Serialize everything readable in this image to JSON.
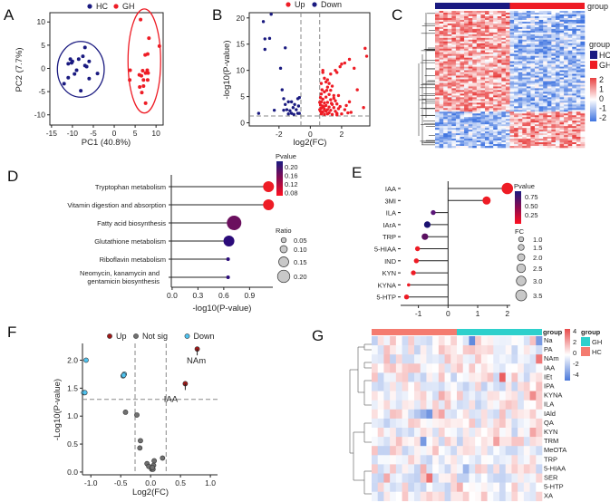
{
  "panels": {
    "A": "A",
    "B": "B",
    "C": "C",
    "D": "D",
    "E": "E",
    "F": "F",
    "G": "G"
  },
  "colors": {
    "HC": "#1a1a80",
    "GH": "#ee1c25",
    "up_F": "#a01818",
    "notsig_F": "#707070",
    "down_F": "#4fc3f0",
    "heat_low": "#3f74e0",
    "heat_high": "#e84040",
    "G_GH": "#2ed0cc",
    "G_HC": "#f47b6f"
  },
  "chart_data": [
    {
      "panel": "A",
      "type": "scatter",
      "xlabel": "PC1 (40.8%)",
      "ylabel": "PC2 (7.7%)",
      "xlim": [
        -15.4,
        11.7
      ],
      "ylim": [
        -12.2,
        12
      ],
      "xticks": [
        -15,
        -10,
        -5,
        0,
        5,
        10
      ],
      "yticks": [
        -10,
        -5,
        0,
        5,
        10
      ],
      "legend": "top",
      "series": [
        {
          "name": "HC",
          "color": "#1a1a80",
          "ellipse": {
            "cx": -8,
            "cy": -0.2,
            "rx": 5.6,
            "ry": 6.0
          },
          "points": [
            [
              -10.5,
              2
            ],
            [
              -10,
              1.5
            ],
            [
              -11,
              1
            ],
            [
              -10.2,
              1.2
            ],
            [
              -8.5,
              2
            ],
            [
              -7.5,
              2.6
            ],
            [
              -7,
              4.5
            ],
            [
              -6,
              1.5
            ],
            [
              -7,
              0.6
            ],
            [
              -6.6,
              0.4
            ],
            [
              -9,
              -0.4
            ],
            [
              -9.5,
              -1.2
            ],
            [
              -4,
              -1.1
            ],
            [
              -11,
              -2
            ],
            [
              -6,
              -2.2
            ],
            [
              -12,
              -3.3
            ],
            [
              -8,
              -4.8
            ]
          ]
        },
        {
          "name": "GH",
          "color": "#ee1c25",
          "ellipse": {
            "cx": 7.2,
            "cy": 1.6,
            "rx": 3.9,
            "ry": 11.2
          },
          "points": [
            [
              6.3,
              10.5
            ],
            [
              8.3,
              6.5
            ],
            [
              10.8,
              4.8
            ],
            [
              7.4,
              2.9
            ],
            [
              8,
              3.1
            ],
            [
              3.8,
              -0.4
            ],
            [
              3.7,
              -2.5
            ],
            [
              6,
              -1.4
            ],
            [
              6.5,
              -1.6
            ],
            [
              6.8,
              -0.5
            ],
            [
              7.5,
              -1
            ],
            [
              7.9,
              -0.4
            ],
            [
              8.1,
              -1
            ],
            [
              7,
              -2.5
            ],
            [
              8,
              -2.5
            ],
            [
              6.1,
              -4
            ],
            [
              7,
              -3.8
            ],
            [
              6.6,
              -5.2
            ],
            [
              7.5,
              -7.5
            ]
          ]
        }
      ]
    },
    {
      "panel": "B",
      "type": "scatter",
      "xlabel": "log2(FC)",
      "ylabel": "-log10(P-value)",
      "xlim": [
        -3.9,
        3.8
      ],
      "ylim": [
        -0.6,
        21
      ],
      "xticks": [
        -2,
        0,
        2
      ],
      "yticks": [
        0,
        5,
        10,
        15,
        20
      ],
      "thresholds": {
        "x": [
          -0.6,
          0.6
        ],
        "y": 1.3
      },
      "legend": "top",
      "series": [
        {
          "name": "Up",
          "color": "#ee1c25",
          "points": [
            [
              3.5,
              14.2
            ],
            [
              3.6,
              12.7
            ],
            [
              2.5,
              12.1
            ],
            [
              2.2,
              11.4
            ],
            [
              2,
              11.2
            ],
            [
              1.9,
              10.7
            ],
            [
              2.8,
              10.4
            ],
            [
              1.6,
              10
            ],
            [
              0.8,
              10
            ],
            [
              0.8,
              9.6
            ],
            [
              1.3,
              9.3
            ],
            [
              1.7,
              9.6
            ],
            [
              3,
              6.3
            ],
            [
              3.4,
              2.9
            ],
            [
              2.5,
              4
            ],
            [
              2.3,
              3.3
            ],
            [
              2.6,
              2
            ],
            [
              1.7,
              3.6
            ],
            [
              1.5,
              4.7
            ],
            [
              1.4,
              7
            ],
            [
              1.2,
              7.5
            ],
            [
              0.9,
              8.5
            ],
            [
              1.1,
              8.2
            ],
            [
              1,
              7.8
            ],
            [
              0.7,
              7.5
            ],
            [
              1.8,
              5.2
            ],
            [
              2,
              1.7
            ],
            [
              1.7,
              1.8
            ],
            [
              1.1,
              6.8
            ],
            [
              1.3,
              6.2
            ],
            [
              0.7,
              5.5
            ],
            [
              0.9,
              5.9
            ],
            [
              1.2,
              5.4
            ],
            [
              1.5,
              5.2
            ],
            [
              0.65,
              4.8
            ],
            [
              0.8,
              4.5
            ],
            [
              1,
              4.9
            ],
            [
              1.3,
              4.4
            ],
            [
              1.6,
              4.2
            ],
            [
              0.7,
              4
            ],
            [
              0.9,
              3.8
            ],
            [
              1.1,
              3.9
            ],
            [
              1.4,
              3.5
            ],
            [
              0.65,
              3.4
            ],
            [
              0.8,
              3.2
            ],
            [
              1,
              3.3
            ],
            [
              1.2,
              3
            ],
            [
              1.5,
              2.9
            ],
            [
              1.8,
              2.7
            ],
            [
              0.7,
              2.8
            ],
            [
              0.9,
              2.6
            ],
            [
              1.1,
              2.5
            ],
            [
              1.3,
              2.4
            ],
            [
              0.65,
              2.2
            ],
            [
              0.8,
              2.1
            ],
            [
              1,
              2.2
            ],
            [
              1.2,
              1.9
            ],
            [
              1.6,
              2.2
            ],
            [
              0.7,
              1.7
            ],
            [
              0.9,
              1.6
            ],
            [
              1.1,
              1.7
            ],
            [
              1.4,
              1.6
            ],
            [
              2.2,
              2.5
            ],
            [
              1.9,
              3.1
            ],
            [
              0.75,
              6.3
            ],
            [
              1.05,
              6.2
            ],
            [
              0.85,
              3
            ],
            [
              1.35,
              3.7
            ],
            [
              0.6,
              2.5
            ],
            [
              0.6,
              3.9
            ],
            [
              1.7,
              1.5
            ],
            [
              2.4,
              1.9
            ]
          ]
        },
        {
          "name": "Down",
          "color": "#1a1a80",
          "points": [
            [
              -2.5,
              20.7
            ],
            [
              -3,
              19.3
            ],
            [
              -2.9,
              16
            ],
            [
              -2.6,
              16.1
            ],
            [
              -2.9,
              14
            ],
            [
              -1.6,
              14.3
            ],
            [
              -1.9,
              10.4
            ],
            [
              -1.8,
              6.3
            ],
            [
              -3.3,
              1.8
            ],
            [
              -2.3,
              2.4
            ],
            [
              -1.7,
              4.6
            ],
            [
              -1.4,
              4
            ],
            [
              -1.2,
              4
            ],
            [
              -0.8,
              4.6
            ],
            [
              -0.7,
              4.8
            ],
            [
              -1,
              3.5
            ],
            [
              -1.6,
              3.5
            ],
            [
              -1.5,
              2.5
            ],
            [
              -1.3,
              2.3
            ],
            [
              -1.1,
              2.9
            ],
            [
              -0.9,
              2.5
            ],
            [
              -0.8,
              1.8
            ],
            [
              -1.2,
              1.8
            ],
            [
              -1.4,
              1.7
            ],
            [
              -0.7,
              1.8
            ],
            [
              -1.7,
              2.4
            ],
            [
              -0.75,
              3.2
            ],
            [
              -1.05,
              1.6
            ]
          ]
        }
      ]
    },
    {
      "panel": "C",
      "type": "heatmap",
      "annotation_label": "group",
      "legend_title": "group",
      "groups": [
        {
          "name": "HC",
          "color": "#1a1a80"
        },
        {
          "name": "GH",
          "color": "#ee1c25"
        }
      ],
      "colorbar_ticks": [
        "2",
        "1",
        "0",
        "-1",
        "-2"
      ]
    },
    {
      "panel": "D",
      "type": "lollipop",
      "xlabel": "-log10(P-value)",
      "xlim": [
        -0.02,
        1.17
      ],
      "xticks": [
        "0.0",
        "0.3",
        "0.6",
        "0.9"
      ],
      "categories": [
        "Tryptophan metabolism",
        "Vitamin digestion and absorption",
        "Fatty acid biosynthesis",
        "Glutathione metabolism",
        "Riboflavin metabolism",
        "Neomycin, kanamycin and|gentamicin biosynthesis"
      ],
      "values": [
        1.12,
        1.12,
        0.72,
        0.66,
        0.65,
        0.65
      ],
      "pvalues": [
        0.076,
        0.076,
        0.19,
        0.22,
        0.22,
        0.22
      ],
      "ratios": [
        0.15,
        0.15,
        0.2,
        0.15,
        0.05,
        0.05
      ],
      "color_legend": {
        "title": "Pvalue",
        "ticks": [
          "0.20",
          "0.16",
          "0.12",
          "0.08"
        ]
      },
      "size_legend": {
        "title": "Ratio",
        "ticks": [
          "0.05",
          "0.10",
          "0.15",
          "0.20"
        ]
      }
    },
    {
      "panel": "E",
      "type": "lollipop",
      "xlim": [
        -1.6,
        2.1
      ],
      "xticks": [
        -1,
        0,
        1,
        2
      ],
      "categories": [
        "IAA",
        "3MI",
        "ILA",
        "IArA",
        "TRP",
        "5-HIAA",
        "IND",
        "KYN",
        "KYNA",
        "5-HTP"
      ],
      "values": [
        2.0,
        1.3,
        -0.5,
        -0.7,
        -0.78,
        -1.03,
        -1.07,
        -1.17,
        -1.33,
        -1.4
      ],
      "pvalues": [
        0.01,
        0.02,
        0.6,
        0.95,
        0.75,
        0.03,
        0.03,
        0.03,
        0.03,
        0.03
      ],
      "fc": [
        3.5,
        2.5,
        1.5,
        2.0,
        2.0,
        1.5,
        1.5,
        1.5,
        1.0,
        1.5
      ],
      "color_legend": {
        "title": "Pvalue",
        "ticks": [
          "0.75",
          "0.50",
          "0.25"
        ]
      },
      "size_legend": {
        "title": "FC",
        "ticks": [
          "1.0",
          "1.5",
          "2.0",
          "2.5",
          "3.0",
          "3.5"
        ]
      }
    },
    {
      "panel": "F",
      "type": "scatter",
      "xlabel": "Log2(FC)",
      "ylabel": "-Log10(P-value)",
      "xlim": [
        -1.14,
        1.12
      ],
      "ylim": [
        -0.05,
        2.3
      ],
      "xticks": [
        "-1.0",
        "-0.5",
        "0.0",
        "0.5",
        "1.0"
      ],
      "yticks": [
        "0.0",
        "0.5",
        "1.0",
        "1.5",
        "2.0"
      ],
      "thresholds": {
        "x": [
          -0.26,
          0.26
        ],
        "y": 1.3
      },
      "legend": "top",
      "series": [
        {
          "name": "Up",
          "color": "#a01818",
          "points": [
            [
              0.78,
              2.2,
              "NAm"
            ],
            [
              0.58,
              1.58,
              "IAA"
            ]
          ]
        },
        {
          "name": "Not sig",
          "color": "#707070",
          "points": [
            [
              -0.42,
              1.07
            ],
            [
              -0.23,
              1.02
            ],
            [
              -0.17,
              0.56
            ],
            [
              -0.18,
              0.43
            ],
            [
              -0.06,
              0.15
            ],
            [
              -0.03,
              0.1
            ],
            [
              0.06,
              0.2
            ],
            [
              0.05,
              0.12
            ],
            [
              0.02,
              0.05
            ],
            [
              0.04,
              0.05
            ],
            [
              0.2,
              0.25
            ],
            [
              0.03,
              0.08
            ]
          ]
        },
        {
          "name": "Down",
          "color": "#4fc3f0",
          "points": [
            [
              -1.08,
              2.0
            ],
            [
              -1.12,
              1.42
            ],
            [
              -1.1,
              1.42
            ],
            [
              -0.46,
              1.72
            ],
            [
              -0.44,
              1.75
            ],
            [
              -0.45,
              1.73
            ]
          ]
        }
      ]
    },
    {
      "panel": "G",
      "type": "heatmap",
      "annotation_label": "group",
      "legend_title": "group",
      "groups": [
        {
          "name": "GH",
          "color": "#2ed0cc"
        },
        {
          "name": "HC",
          "color": "#f47b6f"
        }
      ],
      "rows": [
        "Na",
        "PA",
        "NAm",
        "IAA",
        "IEt",
        "IPA",
        "KYNA",
        "ILA",
        "IAld",
        "QA",
        "KYN",
        "TRM",
        "MeOTA",
        "TRP",
        "5-HIAA",
        "SER",
        "5-HTP",
        "XA"
      ],
      "colorbar_ticks": [
        "4",
        "2",
        "0",
        "-2",
        "-4"
      ]
    }
  ]
}
